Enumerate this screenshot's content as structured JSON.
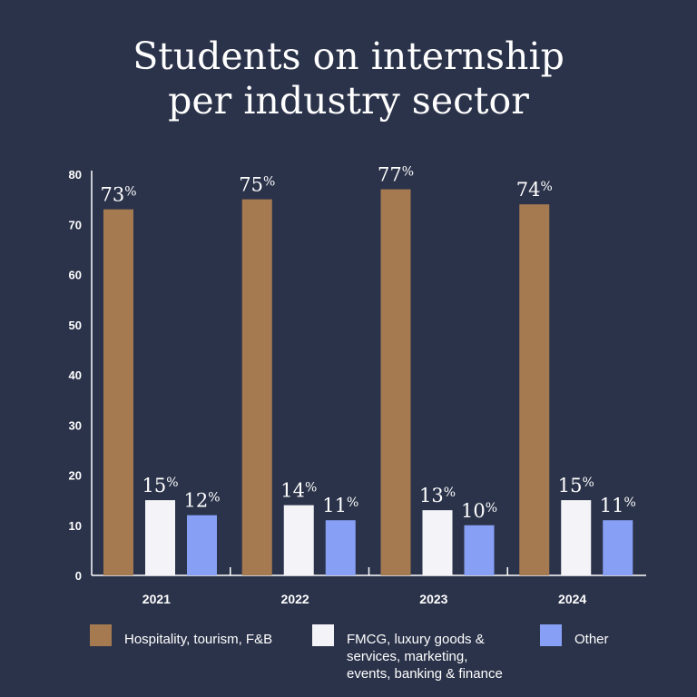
{
  "title_line1": "Students on internship",
  "title_line2": "per industry sector",
  "chart_data": {
    "type": "bar",
    "title": "Students on internship per industry sector",
    "categories": [
      "2021",
      "2022",
      "2023",
      "2024"
    ],
    "series": [
      {
        "name": "Hospitality, tourism, F&B",
        "color": "#a67a51",
        "values": [
          73,
          75,
          77,
          74
        ]
      },
      {
        "name": "FMCG, luxury goods & services, marketing, events, banking & finance",
        "color": "#f4f4f8",
        "values": [
          15,
          14,
          13,
          15
        ]
      },
      {
        "name": "Other",
        "color": "#879ff5",
        "values": [
          12,
          11,
          10,
          11
        ]
      }
    ],
    "ylim": [
      0,
      80
    ],
    "yticks": [
      0,
      10,
      20,
      30,
      40,
      50,
      60,
      70,
      80
    ],
    "data_label_suffix": "%",
    "xlabel": "",
    "ylabel": "",
    "grid": false,
    "legend_position": "bottom"
  },
  "legend": [
    {
      "lines": [
        "Hospitality, tourism, F&B"
      ]
    },
    {
      "lines": [
        "FMCG, luxury goods &",
        "services, marketing,",
        "events, banking & finance"
      ]
    },
    {
      "lines": [
        "Other"
      ]
    }
  ]
}
